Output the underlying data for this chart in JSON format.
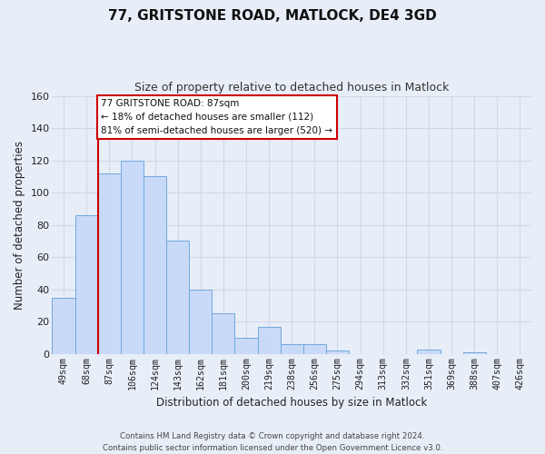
{
  "title": "77, GRITSTONE ROAD, MATLOCK, DE4 3GD",
  "subtitle": "Size of property relative to detached houses in Matlock",
  "xlabel": "Distribution of detached houses by size in Matlock",
  "ylabel": "Number of detached properties",
  "footer_line1": "Contains HM Land Registry data © Crown copyright and database right 2024.",
  "footer_line2": "Contains public sector information licensed under the Open Government Licence v3.0.",
  "bin_labels": [
    "49sqm",
    "68sqm",
    "87sqm",
    "106sqm",
    "124sqm",
    "143sqm",
    "162sqm",
    "181sqm",
    "200sqm",
    "219sqm",
    "238sqm",
    "256sqm",
    "275sqm",
    "294sqm",
    "313sqm",
    "332sqm",
    "351sqm",
    "369sqm",
    "388sqm",
    "407sqm",
    "426sqm"
  ],
  "bar_heights": [
    35,
    86,
    112,
    120,
    110,
    70,
    40,
    25,
    10,
    17,
    6,
    6,
    2,
    0,
    0,
    0,
    3,
    0,
    1,
    0,
    0
  ],
  "bar_color": "#c9daf8",
  "bar_edge_color": "#6fa8dc",
  "vline_index": 2,
  "vline_color": "#cc0000",
  "ylim": [
    0,
    160
  ],
  "yticks": [
    0,
    20,
    40,
    60,
    80,
    100,
    120,
    140,
    160
  ],
  "annotation_title": "77 GRITSTONE ROAD: 87sqm",
  "annotation_line1": "← 18% of detached houses are smaller (112)",
  "annotation_line2": "81% of semi-detached houses are larger (520) →",
  "annotation_box_color": "#ffffff",
  "annotation_box_edge": "#cc0000",
  "grid_color": "#d0d8e8",
  "background_color": "#e8eef8",
  "title_fontsize": 11,
  "subtitle_fontsize": 9
}
